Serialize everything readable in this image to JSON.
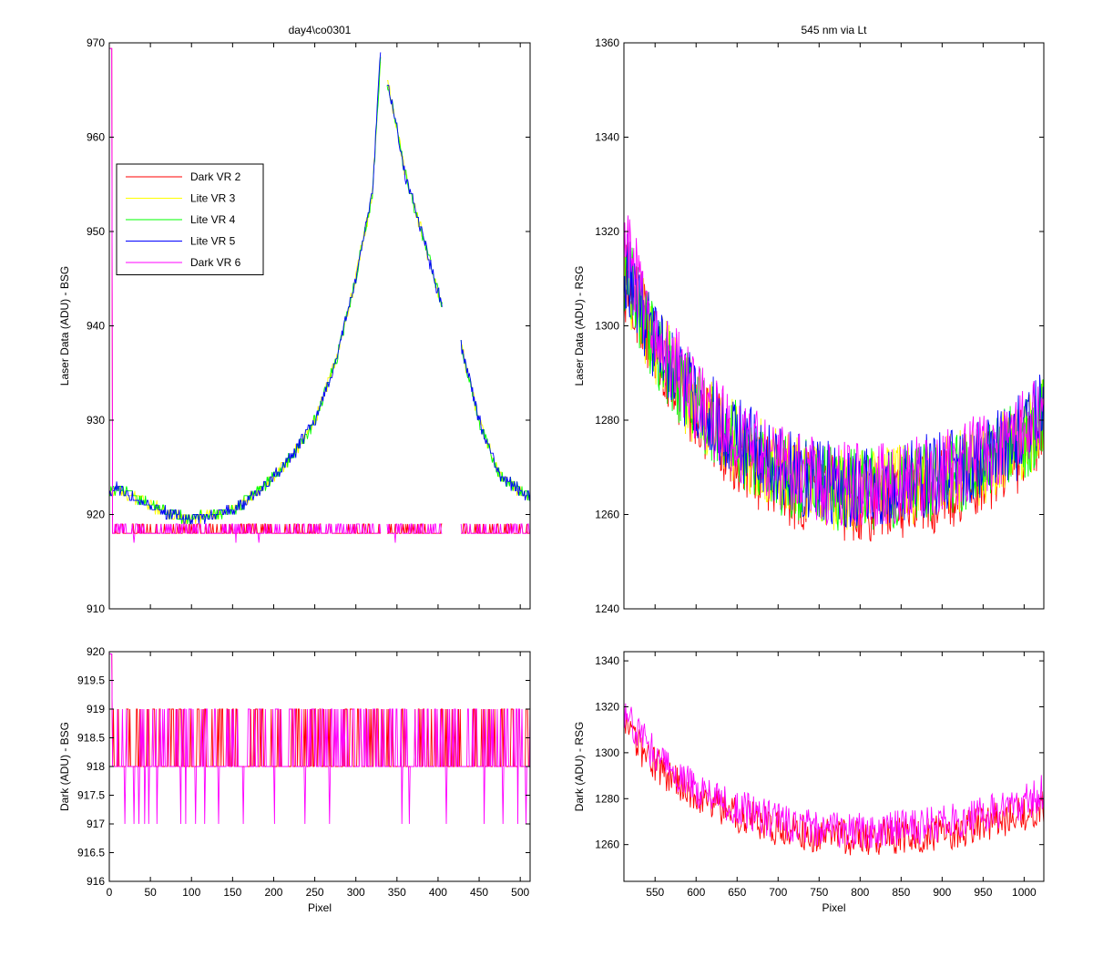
{
  "colors": {
    "dark_vr_2": "#ff0000",
    "lite_vr_3": "#ffff00",
    "lite_vr_4": "#00ff00",
    "lite_vr_5": "#0000ff",
    "dark_vr_6": "#ff00ff"
  },
  "chart_data": [
    {
      "type": "line",
      "panel": "top-left",
      "title": "day4\\co0301",
      "xlabel": "",
      "ylabel": "Laser Data (ADU) - BSG",
      "xlim": [
        0,
        512
      ],
      "ylim": [
        910,
        970
      ],
      "xticks": [
        0,
        50,
        100,
        150,
        200,
        250,
        300,
        350,
        400,
        450,
        500
      ],
      "yticks": [
        910,
        920,
        930,
        940,
        950,
        960,
        970
      ],
      "ytick_labels": [
        "910",
        "920",
        "930",
        "940",
        "950",
        "960",
        "970"
      ],
      "show_xtick_labels": false,
      "legend": {
        "placement": "upper-left",
        "entries": [
          "Dark VR 2",
          "Lite VR 3",
          "Lite VR 4",
          "Lite VR 5",
          "Dark VR 6"
        ]
      },
      "gaps": [
        [
          330,
          338
        ],
        [
          405,
          428
        ]
      ],
      "series": [
        {
          "name": "Dark VR 2",
          "color": "#ff0000",
          "x": [
            0,
            512
          ],
          "y": [
            918,
            918
          ],
          "band": [
            918,
            919
          ]
        },
        {
          "name": "Lite VR 3",
          "color": "#ffff00",
          "x": [
            0,
            10,
            25,
            50,
            75,
            100,
            125,
            150,
            175,
            200,
            225,
            250,
            275,
            300,
            320,
            330,
            338,
            350,
            360,
            380,
            405,
            428,
            450,
            475,
            500,
            512
          ],
          "y": [
            922,
            923,
            922,
            921,
            920,
            919.5,
            920,
            920.5,
            922,
            924,
            926.5,
            930,
            936,
            945,
            954,
            968,
            966,
            961,
            956,
            950,
            942,
            938,
            930,
            924,
            922.5,
            922
          ]
        },
        {
          "name": "Lite VR 4",
          "color": "#00ff00",
          "x": [
            0,
            10,
            25,
            50,
            75,
            100,
            125,
            150,
            175,
            200,
            225,
            250,
            275,
            300,
            320,
            330,
            338,
            350,
            360,
            380,
            405,
            428,
            450,
            475,
            500,
            512
          ],
          "y": [
            922,
            923,
            922,
            921,
            920,
            919.5,
            920,
            920.5,
            922,
            924,
            926.5,
            930,
            936,
            945,
            954,
            968,
            966,
            961,
            956,
            950,
            942,
            938,
            930,
            924,
            922.5,
            922
          ]
        },
        {
          "name": "Lite VR 5",
          "color": "#0000ff",
          "x": [
            0,
            10,
            25,
            50,
            75,
            100,
            125,
            150,
            175,
            200,
            225,
            250,
            275,
            300,
            320,
            330,
            338,
            350,
            360,
            380,
            405,
            428,
            450,
            475,
            500,
            512
          ],
          "y": [
            922,
            923,
            922,
            921,
            920,
            919.5,
            920,
            920.5,
            922,
            924,
            926.5,
            930,
            936,
            945,
            954,
            969,
            966,
            961,
            956,
            950,
            942,
            938,
            930,
            924,
            922.5,
            922
          ]
        },
        {
          "name": "Dark VR 6",
          "color": "#ff00ff",
          "x": [
            0,
            512
          ],
          "y": [
            918,
            918
          ],
          "band": [
            917,
            919
          ]
        }
      ]
    },
    {
      "type": "line",
      "panel": "top-right",
      "title": "545 nm via Lt",
      "xlabel": "",
      "ylabel": "Laser Data (ADU) - RSG",
      "xlim": [
        512,
        1024
      ],
      "ylim": [
        1240,
        1360
      ],
      "xticks": [
        550,
        600,
        650,
        700,
        750,
        800,
        850,
        900,
        950,
        1000
      ],
      "yticks": [
        1240,
        1260,
        1280,
        1300,
        1320,
        1340,
        1360
      ],
      "ytick_labels": [
        "1240",
        "1260",
        "1280",
        "1300",
        "1320",
        "1340",
        "1360"
      ],
      "show_xtick_labels": false,
      "noise_amplitude": 9,
      "series": [
        {
          "name": "Dark VR 2",
          "color": "#ff0000",
          "x": [
            512,
            530,
            550,
            575,
            600,
            650,
            700,
            750,
            800,
            850,
            900,
            950,
            1000,
            1024
          ],
          "y": [
            1310,
            1303,
            1295,
            1288,
            1282,
            1273,
            1267,
            1264,
            1263,
            1264,
            1265,
            1269,
            1274,
            1277
          ]
        },
        {
          "name": "Lite VR 3",
          "color": "#ffff00",
          "x": [
            512,
            530,
            550,
            575,
            600,
            650,
            700,
            750,
            800,
            850,
            900,
            950,
            1000,
            1024
          ],
          "y": [
            1312,
            1304,
            1296,
            1289,
            1283,
            1275,
            1269,
            1266,
            1265,
            1266,
            1268,
            1271,
            1276,
            1280
          ]
        },
        {
          "name": "Lite VR 4",
          "color": "#00ff00",
          "x": [
            512,
            530,
            550,
            575,
            600,
            650,
            700,
            750,
            800,
            850,
            900,
            950,
            1000,
            1024
          ],
          "y": [
            1312,
            1304,
            1296,
            1289,
            1283,
            1275,
            1269,
            1266,
            1265,
            1266,
            1268,
            1271,
            1276,
            1280
          ]
        },
        {
          "name": "Lite VR 5",
          "color": "#0000ff",
          "x": [
            512,
            530,
            550,
            575,
            600,
            650,
            700,
            750,
            800,
            850,
            900,
            950,
            1000,
            1024
          ],
          "y": [
            1313,
            1305,
            1297,
            1290,
            1284,
            1276,
            1270,
            1267,
            1266,
            1267,
            1269,
            1272,
            1277,
            1282
          ]
        },
        {
          "name": "Dark VR 6",
          "color": "#ff00ff",
          "x": [
            512,
            530,
            550,
            575,
            600,
            650,
            700,
            750,
            800,
            850,
            900,
            950,
            1000,
            1024
          ],
          "y": [
            1318,
            1309,
            1299,
            1291,
            1284,
            1276,
            1270,
            1267,
            1266,
            1267,
            1269,
            1273,
            1278,
            1283
          ]
        }
      ]
    },
    {
      "type": "line",
      "panel": "bottom-left",
      "title": "",
      "xlabel": "Pixel",
      "ylabel": "Dark (ADU) - BSG",
      "xlim": [
        0,
        512
      ],
      "ylim": [
        916,
        920
      ],
      "xticks": [
        0,
        50,
        100,
        150,
        200,
        250,
        300,
        350,
        400,
        450,
        500
      ],
      "xtick_labels": [
        "0",
        "50",
        "100",
        "150",
        "200",
        "250",
        "300",
        "350",
        "400",
        "450",
        "500"
      ],
      "yticks": [
        916,
        916.5,
        917,
        917.5,
        918,
        918.5,
        919,
        919.5,
        920
      ],
      "ytick_labels": [
        "916",
        "916.5",
        "917",
        "917.5",
        "918",
        "918.5",
        "919",
        "919.5",
        "920"
      ],
      "series": [
        {
          "name": "Dark VR 2",
          "color": "#ff0000",
          "x": [
            0,
            512
          ],
          "y": [
            918,
            918
          ],
          "band": [
            918,
            919
          ]
        },
        {
          "name": "Dark VR 6",
          "color": "#ff00ff",
          "x": [
            0,
            512
          ],
          "y": [
            918,
            918
          ],
          "band": [
            917,
            919
          ]
        }
      ]
    },
    {
      "type": "line",
      "panel": "bottom-right",
      "title": "",
      "xlabel": "Pixel",
      "ylabel": "Dark (ADU) - RSG",
      "xlim": [
        512,
        1024
      ],
      "ylim": [
        1244,
        1344
      ],
      "xticks": [
        550,
        600,
        650,
        700,
        750,
        800,
        850,
        900,
        950,
        1000
      ],
      "xtick_labels": [
        "550",
        "600",
        "650",
        "700",
        "750",
        "800",
        "850",
        "900",
        "950",
        "1000"
      ],
      "yticks": [
        1260,
        1280,
        1300,
        1320,
        1340
      ],
      "ytick_labels": [
        "1260",
        "1280",
        "1300",
        "1320",
        "1340"
      ],
      "noise_amplitude": 8,
      "series": [
        {
          "name": "Dark VR 2",
          "color": "#ff0000",
          "x": [
            512,
            530,
            550,
            575,
            600,
            650,
            700,
            750,
            800,
            850,
            900,
            950,
            1000,
            1024
          ],
          "y": [
            1310,
            1303,
            1295,
            1288,
            1282,
            1273,
            1267,
            1264,
            1263,
            1264,
            1265,
            1269,
            1274,
            1277
          ]
        },
        {
          "name": "Dark VR 6",
          "color": "#ff00ff",
          "x": [
            512,
            530,
            550,
            575,
            600,
            650,
            700,
            750,
            800,
            850,
            900,
            950,
            1000,
            1024
          ],
          "y": [
            1318,
            1309,
            1299,
            1291,
            1284,
            1276,
            1270,
            1267,
            1266,
            1267,
            1269,
            1273,
            1278,
            1283
          ]
        }
      ]
    }
  ]
}
